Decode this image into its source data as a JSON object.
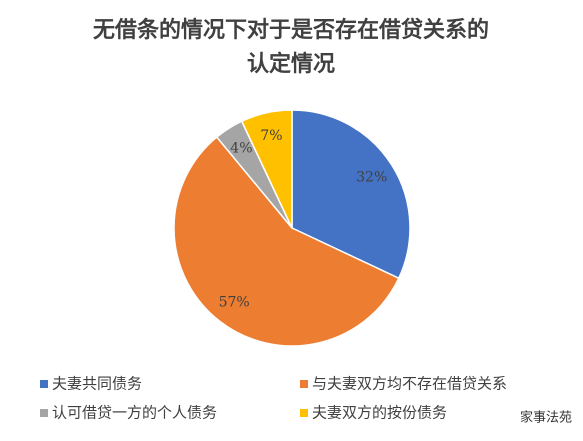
{
  "chart_data": {
    "type": "pie",
    "title": "无借条的情况下对于是否存在借贷关系的认定情况",
    "categories": [
      "夫妻共同债务",
      "与夫妻双方均不存在借贷关系",
      "认可借贷一方的个人债务",
      "夫妻双方的按份债务"
    ],
    "values": [
      32,
      57,
      4,
      7
    ],
    "value_labels": [
      "32%",
      "57%",
      "4%",
      "7%"
    ],
    "colors": [
      "#4472c4",
      "#ed7d31",
      "#a5a5a5",
      "#ffc000"
    ],
    "legend": "bottom"
  },
  "watermark": "家事法苑"
}
